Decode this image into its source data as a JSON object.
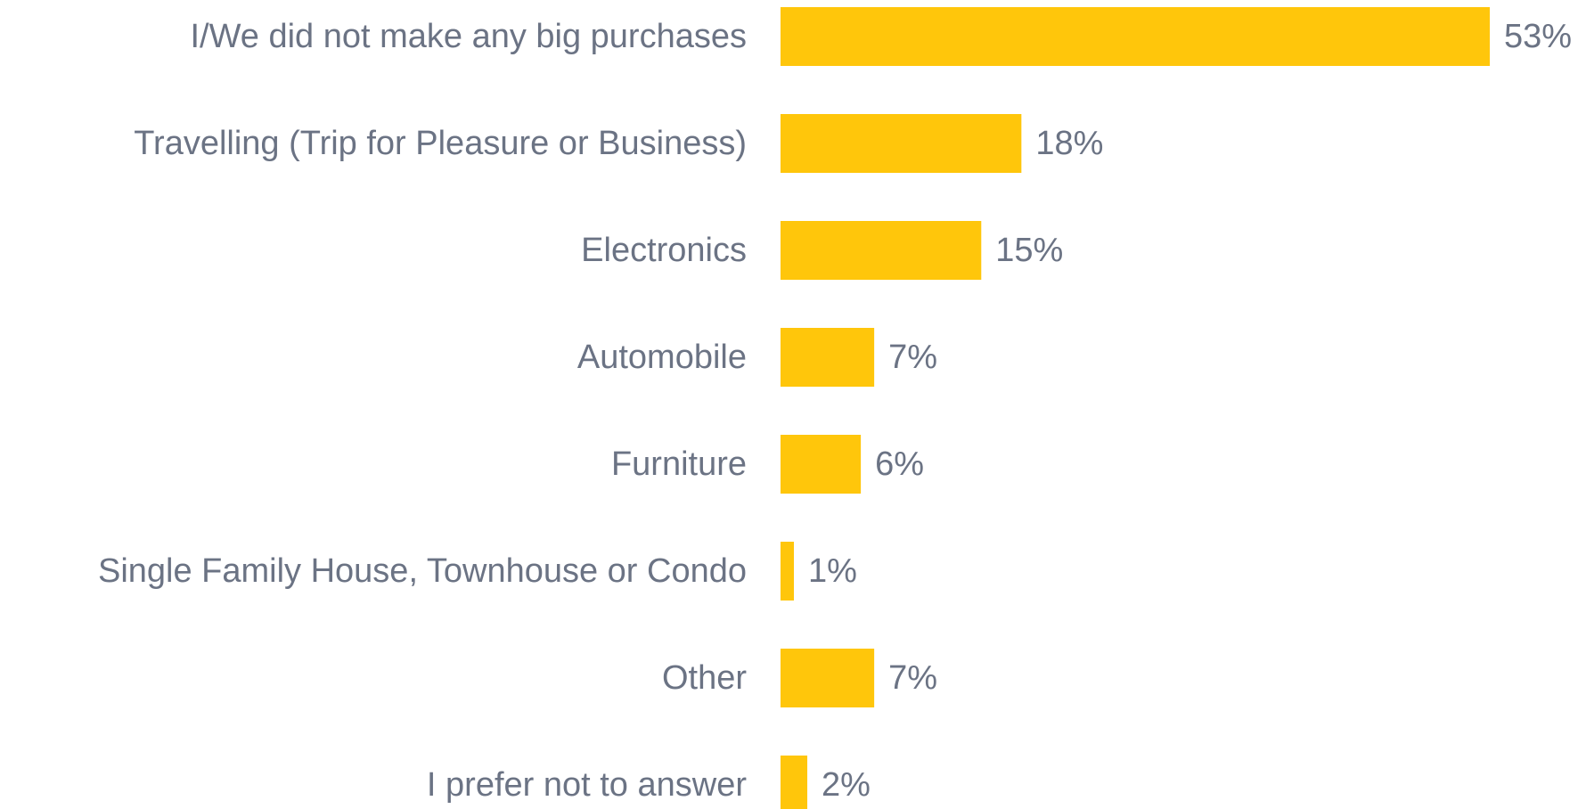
{
  "chart_data": {
    "type": "bar",
    "orientation": "horizontal",
    "categories": [
      "I/We did not make any big purchases",
      "Travelling (Trip for Pleasure or Business)",
      "Electronics",
      "Automobile",
      "Furniture",
      "Single Family House, Townhouse or Condo",
      "Other",
      "I prefer not to answer"
    ],
    "values": [
      53,
      18,
      15,
      7,
      6,
      1,
      7,
      2
    ],
    "value_labels": [
      "53%",
      "18%",
      "15%",
      "7%",
      "6%",
      "1%",
      "7%",
      "2%"
    ],
    "unit": "%",
    "title": "",
    "xlabel": "",
    "ylabel": "",
    "xlim": [
      0,
      53
    ],
    "grid": false,
    "legend": "none",
    "colors": {
      "bar": "#FFC60B",
      "text": "#6B7384",
      "background": "#FFFFFF"
    }
  }
}
